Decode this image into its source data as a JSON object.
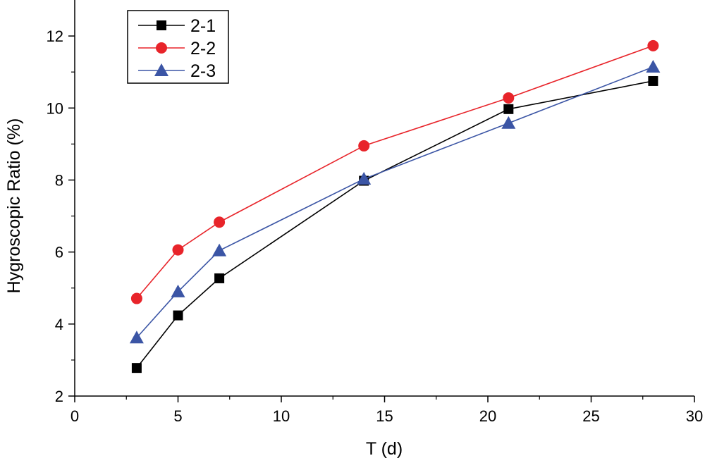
{
  "chart_data": {
    "type": "line",
    "title": "",
    "xlabel": "T (d)",
    "ylabel": "Hygroscopic Ratio (%)",
    "xlim": [
      0,
      30
    ],
    "ylim": [
      2,
      13
    ],
    "x_ticks": [
      0,
      5,
      10,
      15,
      20,
      25,
      30
    ],
    "x_tick_labels": [
      "0",
      "5",
      "10",
      "15",
      "20",
      "25",
      "30"
    ],
    "y_ticks": [
      2,
      4,
      6,
      8,
      10,
      12
    ],
    "y_tick_labels": [
      "2",
      "4",
      "6",
      "8",
      "10",
      "12"
    ],
    "grid": false,
    "legend_position": "top-left",
    "x": [
      3,
      5,
      7,
      14,
      21,
      28
    ],
    "series": [
      {
        "name": "2-1",
        "marker": "square",
        "color": "#000000",
        "values": [
          2.78,
          4.24,
          5.27,
          7.98,
          9.97,
          10.75
        ]
      },
      {
        "name": "2-2",
        "marker": "circle",
        "color": "#e8242a",
        "values": [
          4.71,
          6.06,
          6.83,
          8.95,
          10.28,
          11.73
        ]
      },
      {
        "name": "2-3",
        "marker": "triangle",
        "color": "#3b55a5",
        "values": [
          3.62,
          4.9,
          6.04,
          8.03,
          9.58,
          11.14
        ]
      }
    ]
  }
}
